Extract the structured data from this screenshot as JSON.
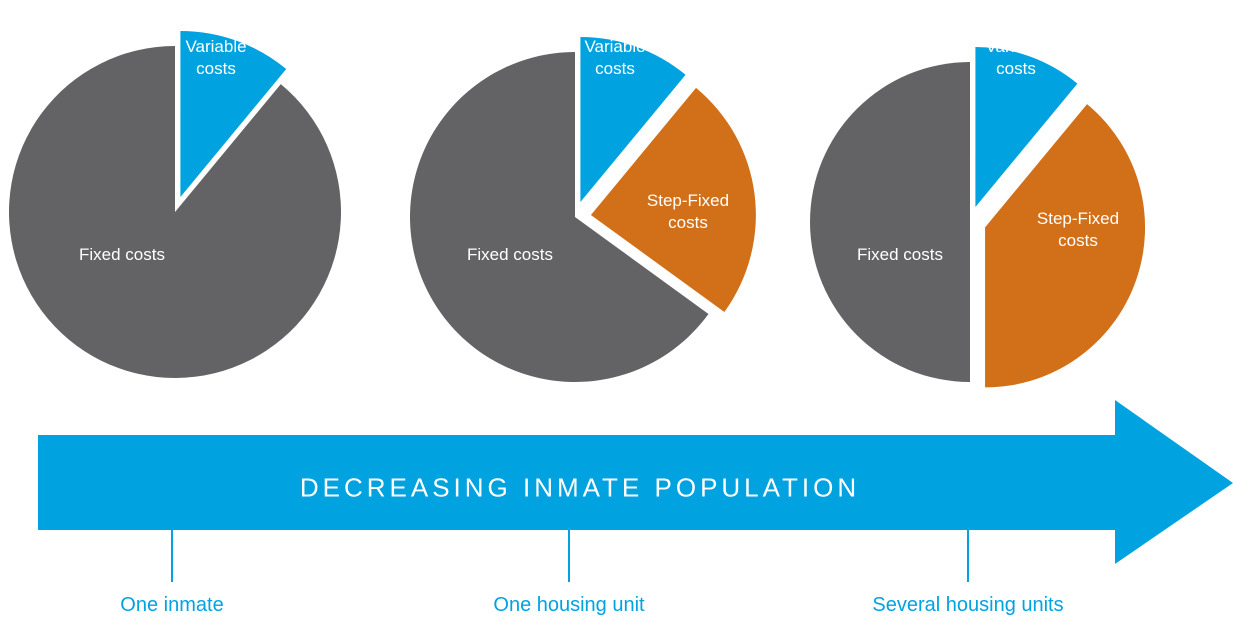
{
  "chart_data": [
    {
      "type": "pie",
      "categories": [
        "Variable costs",
        "Fixed costs"
      ],
      "values": [
        11,
        89
      ],
      "colors": [
        "#00a3e0",
        "#636366"
      ]
    },
    {
      "type": "pie",
      "categories": [
        "Variable costs",
        "Step-Fixed costs",
        "Fixed costs"
      ],
      "values": [
        11,
        24,
        65
      ],
      "colors": [
        "#00a3e0",
        "#d2701a",
        "#636366"
      ]
    },
    {
      "type": "pie",
      "categories": [
        "Variable costs",
        "Step-Fixed costs",
        "Fixed costs"
      ],
      "values": [
        11,
        39,
        50
      ],
      "colors": [
        "#00a3e0",
        "#d2701a",
        "#636366"
      ]
    }
  ],
  "arrow": {
    "label": "DECREASING INMATE POPULATION"
  },
  "stages": [
    "One inmate",
    "One housing unit",
    "Several housing units"
  ]
}
